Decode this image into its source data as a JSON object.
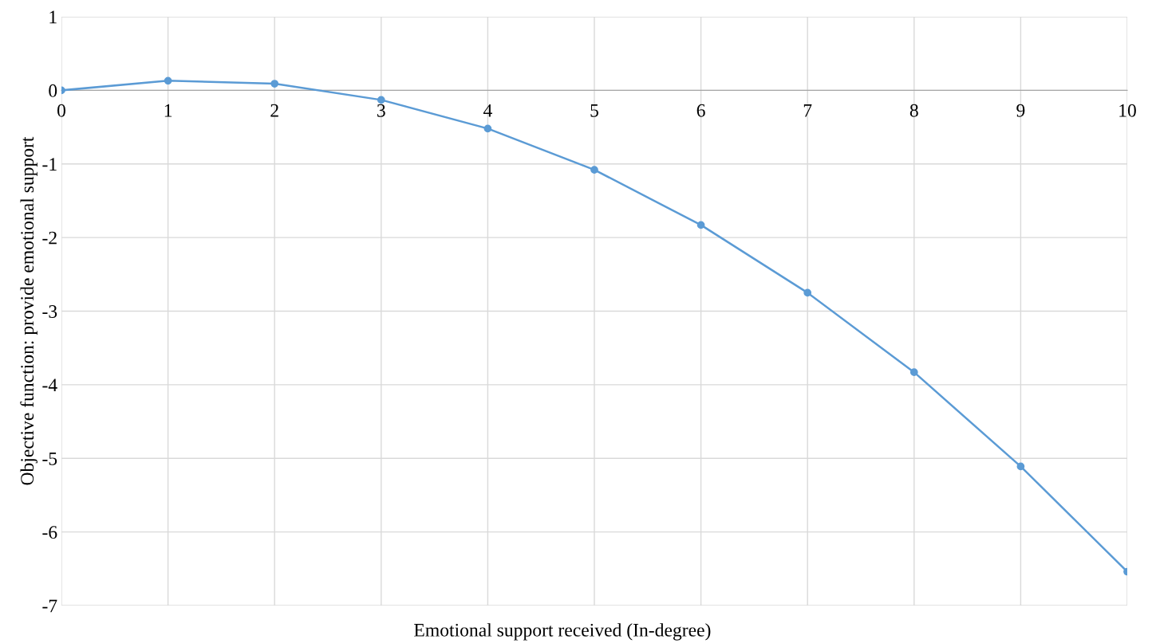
{
  "chart_data": {
    "type": "line",
    "xlabel": "Emotional support received (In-degree)",
    "ylabel": "Objective function: provide emotional support",
    "x": [
      0,
      1,
      2,
      3,
      4,
      5,
      6,
      7,
      8,
      9,
      10
    ],
    "series": [
      {
        "color": "#5b9bd5",
        "values": [
          0,
          0.13,
          0.09,
          -0.13,
          -0.52,
          -1.08,
          -1.83,
          -2.75,
          -3.83,
          -5.11,
          -6.54
        ]
      }
    ],
    "xlim": [
      0,
      10
    ],
    "xticks": [
      0,
      1,
      2,
      3,
      4,
      5,
      6,
      7,
      8,
      9,
      10
    ],
    "ylim": [
      -7,
      1
    ],
    "yticks": [
      -7,
      -6,
      -5,
      -4,
      -3,
      -2,
      -1,
      0,
      1
    ],
    "grid": true,
    "marker": "circle",
    "line_style": "solid"
  }
}
